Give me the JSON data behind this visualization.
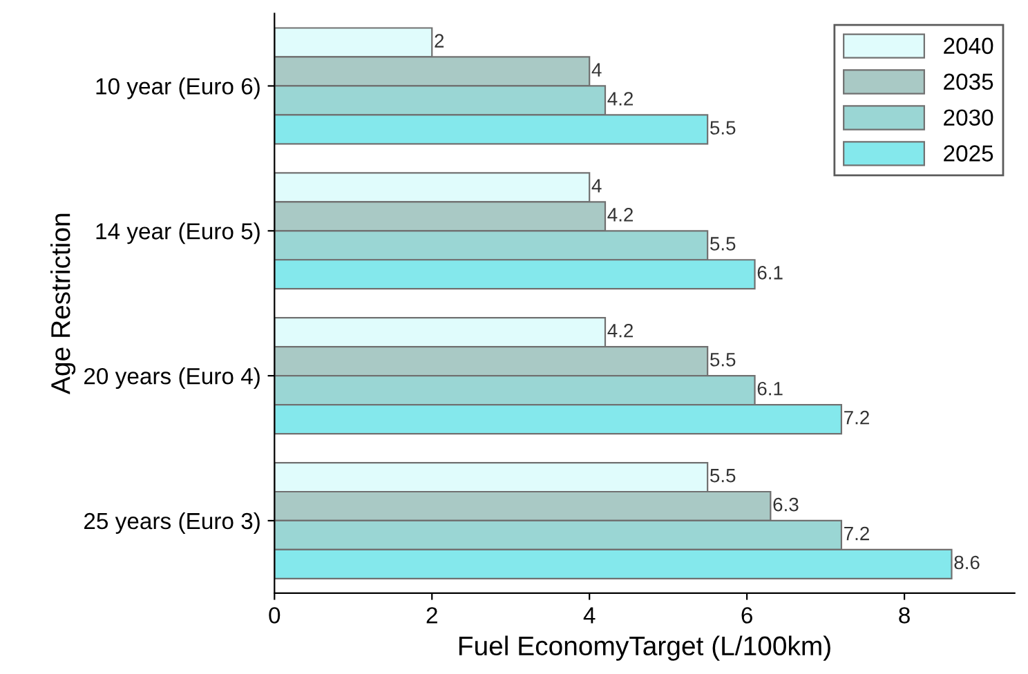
{
  "chart_data": {
    "type": "bar",
    "orientation": "horizontal",
    "xlabel": "Fuel EconomyTarget (L/100km)",
    "ylabel": "Age Restriction",
    "categories": [
      "10 year (Euro 6)",
      "14 year (Euro 5)",
      "20 years (Euro 4)",
      "25 years (Euro 3)"
    ],
    "series": [
      {
        "name": "2040",
        "color": "#e0fcfc",
        "values": [
          2,
          4,
          4.2,
          5.5
        ]
      },
      {
        "name": "2035",
        "color": "#a9c9c5",
        "values": [
          4,
          4.2,
          5.5,
          6.3
        ]
      },
      {
        "name": "2030",
        "color": "#9ad6d4",
        "values": [
          4.2,
          5.5,
          6.1,
          7.2
        ]
      },
      {
        "name": "2025",
        "color": "#84e8ec",
        "values": [
          5.5,
          6.1,
          7.2,
          8.6
        ]
      }
    ],
    "xlim": [
      0,
      9.4
    ],
    "xticks": [
      0,
      2,
      4,
      6,
      8
    ],
    "data_labels": true,
    "legend": "top right",
    "grid": false
  }
}
